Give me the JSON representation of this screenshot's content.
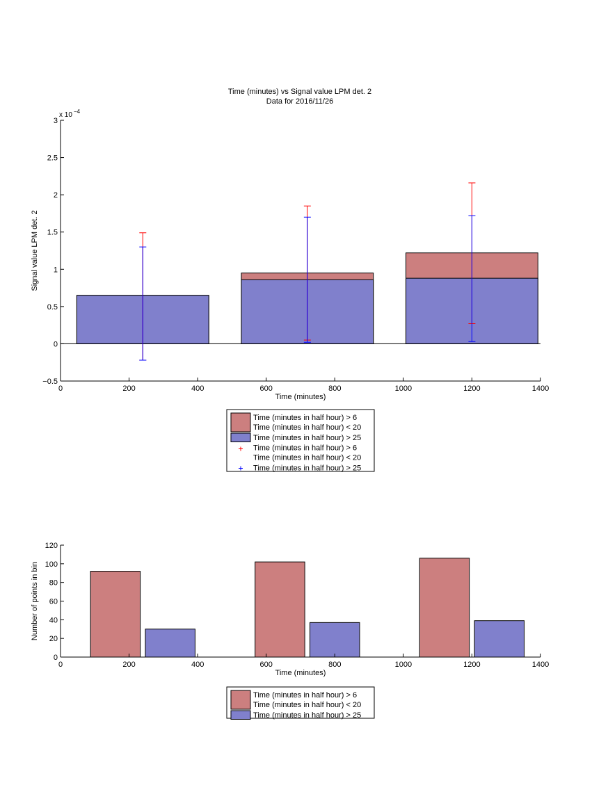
{
  "figure": {
    "title_line1": "Time (minutes) vs Signal value LPM det. 2",
    "title_line2": "Data for 2016/11/26"
  },
  "colors": {
    "series_gt6_lt20": "#cc7f7f",
    "series_gt25": "#8080cc",
    "errbar_gt6_lt20": "#ff0000",
    "errbar_gt25": "#0000ff",
    "axis": "#000000"
  },
  "chart_data": [
    {
      "type": "bar",
      "subtype": "overlaid bars with error bars",
      "xlabel": "Time (minutes)",
      "ylabel": "Signal value LPM det. 2",
      "exponent_label": "x 10",
      "exponent_power": "−4",
      "xlim": [
        0,
        1400
      ],
      "ylim": [
        -5e-05,
        0.0003
      ],
      "x_ticks": [
        0,
        200,
        400,
        600,
        800,
        1000,
        1200,
        1400
      ],
      "y_ticks": [
        -0.5,
        0,
        0.5,
        1,
        1.5,
        2,
        2.5,
        3
      ],
      "x_tick_labels": [
        "0",
        "200",
        "400",
        "600",
        "800",
        "1000",
        "1200",
        "1400"
      ],
      "y_tick_labels": [
        "−0.5",
        "0",
        "0.5",
        "1",
        "1.5",
        "2",
        "2.5",
        "3"
      ],
      "bar_width": 385,
      "x": [
        240,
        720,
        1200
      ],
      "series": [
        {
          "name": "Time (minutes in half hour) > 6\nTime (minutes in half hour) < 20",
          "color_key": "series_gt6_lt20",
          "values": [
            6.5e-05,
            9.5e-05,
            0.000122
          ],
          "err_low": [
            -2.2e-05,
            5e-06,
            2.7e-05
          ],
          "err_high": [
            0.000149,
            0.000185,
            0.000216
          ]
        },
        {
          "name": "Time (minutes in half hour) > 25",
          "color_key": "series_gt25",
          "values": [
            6.5e-05,
            8.6e-05,
            8.8e-05
          ],
          "err_low": [
            -2.2e-05,
            2e-06,
            3e-06
          ],
          "err_high": [
            0.00013,
            0.00017,
            0.000172
          ]
        }
      ],
      "legend": {
        "placement": "below",
        "entries": [
          {
            "label1": "Time (minutes in half hour) > 6",
            "label2": "Time (minutes in half hour) < 20",
            "kind": "patch",
            "color_key": "series_gt6_lt20"
          },
          {
            "label1": "Time (minutes in half hour) > 25",
            "label2": "",
            "kind": "patch",
            "color_key": "series_gt25"
          },
          {
            "label1": "Time (minutes in half hour) > 6",
            "label2": "Time (minutes in half hour) < 20",
            "kind": "marker",
            "color_key": "errbar_gt6_lt20"
          },
          {
            "label1": "Time (minutes in half hour) > 25",
            "label2": "",
            "kind": "marker",
            "color_key": "errbar_gt25"
          }
        ]
      }
    },
    {
      "type": "bar",
      "subtype": "grouped counts",
      "xlabel": "Time (minutes)",
      "ylabel": "Number of points in bin",
      "xlim": [
        0,
        1400
      ],
      "ylim": [
        0,
        120
      ],
      "x_ticks": [
        0,
        200,
        400,
        600,
        800,
        1000,
        1200,
        1400
      ],
      "y_ticks": [
        0,
        20,
        40,
        60,
        80,
        100,
        120
      ],
      "x_tick_labels": [
        "0",
        "200",
        "400",
        "600",
        "800",
        "1000",
        "1200",
        "1400"
      ],
      "y_tick_labels": [
        "0",
        "20",
        "40",
        "60",
        "80",
        "100",
        "120"
      ],
      "bar_width": 145,
      "series": [
        {
          "name": "Time (minutes in half hour) > 6\nTime (minutes in half hour) < 20",
          "color_key": "series_gt6_lt20",
          "x": [
            160,
            640,
            1120
          ],
          "values": [
            92,
            102,
            106
          ]
        },
        {
          "name": "Time (minutes in half hour) > 25",
          "color_key": "series_gt25",
          "x": [
            320,
            800,
            1280
          ],
          "values": [
            30,
            37,
            39
          ]
        }
      ],
      "legend": {
        "placement": "below",
        "entries": [
          {
            "label1": "Time (minutes in half hour) > 6",
            "label2": "Time (minutes in half hour) < 20",
            "kind": "patch",
            "color_key": "series_gt6_lt20"
          },
          {
            "label1": "Time (minutes in half hour) > 25",
            "label2": "",
            "kind": "patch",
            "color_key": "series_gt25"
          }
        ]
      }
    }
  ]
}
